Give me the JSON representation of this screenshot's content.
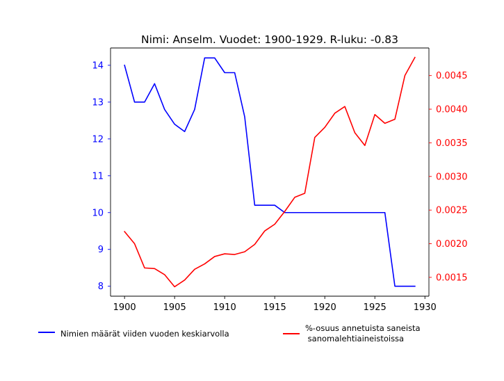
{
  "chart_data": {
    "type": "line",
    "title": "Nimi: Anselm. Vuodet: 1900-1929. R-luku: -0.83",
    "xlabel": "",
    "x_ticks": [
      1900,
      1905,
      1910,
      1915,
      1920,
      1925,
      1930
    ],
    "xlim": [
      1898.6,
      1930.4
    ],
    "left_axis": {
      "ylabel": "",
      "color": "#0000ff",
      "ylim": [
        7.73,
        14.47
      ],
      "ticks": [
        8,
        9,
        10,
        11,
        12,
        13,
        14
      ]
    },
    "right_axis": {
      "ylabel": "",
      "color": "#ff0000",
      "ylim": [
        0.00122,
        0.00491
      ],
      "ticks": [
        0.0015,
        0.002,
        0.0025,
        0.003,
        0.0035,
        0.004,
        0.0045
      ],
      "tick_labels": [
        "0.0015",
        "0.0020",
        "0.0025",
        "0.0030",
        "0.0035",
        "0.0040",
        "0.0045"
      ]
    },
    "x": [
      1900,
      1901,
      1902,
      1903,
      1904,
      1905,
      1906,
      1907,
      1908,
      1909,
      1910,
      1911,
      1912,
      1913,
      1914,
      1915,
      1916,
      1917,
      1918,
      1919,
      1920,
      1921,
      1922,
      1923,
      1924,
      1925,
      1926,
      1927,
      1928,
      1929
    ],
    "series": [
      {
        "name": "Nimien määrät viiden vuoden keskiarvolla",
        "axis": "left",
        "color": "#0000ff",
        "values": [
          14.0,
          13.0,
          13.0,
          13.5,
          12.8,
          12.4,
          12.2,
          12.8,
          14.2,
          14.2,
          13.8,
          13.8,
          12.6,
          10.2,
          10.2,
          10.2,
          10.0,
          10.0,
          10.0,
          10.0,
          10.0,
          10.0,
          10.0,
          10.0,
          10.0,
          10.0,
          10.0,
          8.0,
          8.0,
          8.0
        ]
      },
      {
        "name": "%-osuus annetuista saneista\n sanomalehtiaineistoissa",
        "axis": "right",
        "color": "#ff0000",
        "values": [
          0.00218,
          0.002,
          0.00164,
          0.00163,
          0.00154,
          0.00136,
          0.00146,
          0.00162,
          0.0017,
          0.00181,
          0.00185,
          0.00184,
          0.00188,
          0.00199,
          0.00219,
          0.00229,
          0.00248,
          0.00269,
          0.00275,
          0.00358,
          0.00373,
          0.00394,
          0.00404,
          0.00365,
          0.00346,
          0.00392,
          0.00379,
          0.00385,
          0.0045,
          0.00477
        ]
      }
    ],
    "legend_placement": "bottom",
    "grid": false
  }
}
